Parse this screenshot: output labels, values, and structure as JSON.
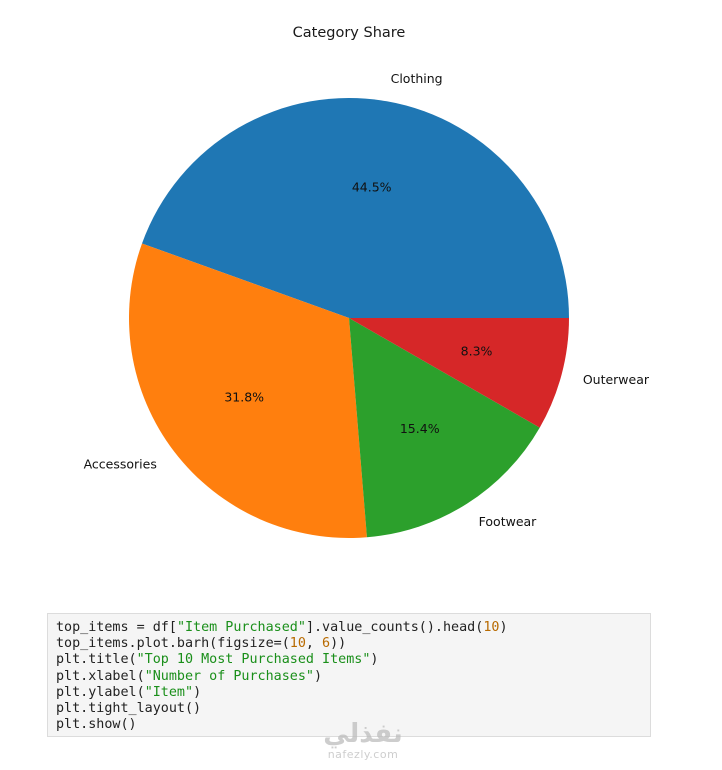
{
  "chart_data": {
    "type": "pie",
    "title": "Category Share",
    "categories": [
      "Clothing",
      "Accessories",
      "Footwear",
      "Outerwear"
    ],
    "values": [
      44.5,
      31.8,
      15.4,
      8.3
    ],
    "labels": [
      "44.5%",
      "31.8%",
      "15.4%",
      "8.3%"
    ],
    "colors": [
      "#1f77b4",
      "#ff7f0e",
      "#2ca02c",
      "#d62728"
    ],
    "legend": "none"
  },
  "code_cell": {
    "lines": [
      [
        {
          "t": "top_items = df["
        },
        {
          "t": "\"Item Purchased\"",
          "k": "str"
        },
        {
          "t": "].value_counts().head("
        },
        {
          "t": "10",
          "k": "num"
        },
        {
          "t": ")"
        }
      ],
      [
        {
          "t": "top_items.plot.barh(figsize=("
        },
        {
          "t": "10",
          "k": "num"
        },
        {
          "t": ", "
        },
        {
          "t": "6",
          "k": "num"
        },
        {
          "t": "))"
        }
      ],
      [
        {
          "t": "plt.title("
        },
        {
          "t": "\"Top 10 Most Purchased Items\"",
          "k": "str"
        },
        {
          "t": ")"
        }
      ],
      [
        {
          "t": "plt.xlabel("
        },
        {
          "t": "\"Number of Purchases\"",
          "k": "str"
        },
        {
          "t": ")"
        }
      ],
      [
        {
          "t": "plt.ylabel("
        },
        {
          "t": "\"Item\"",
          "k": "str"
        },
        {
          "t": ")"
        }
      ],
      [
        {
          "t": "plt.tight_layout()"
        }
      ],
      [
        {
          "t": "plt.show()"
        }
      ]
    ]
  },
  "watermark": {
    "logo_text": "نفذلي",
    "site": "nafezly.com"
  }
}
